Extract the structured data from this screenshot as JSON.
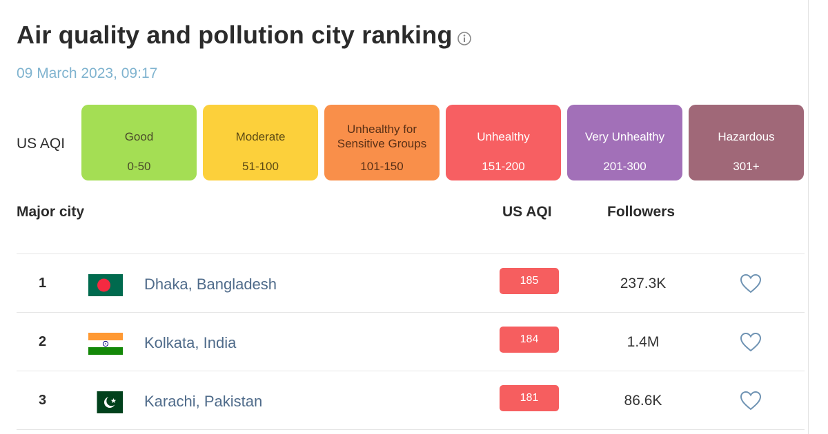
{
  "header": {
    "title": "Air quality and pollution city ranking",
    "timestamp": "09 March 2023, 09:17"
  },
  "legend": {
    "label": "US AQI",
    "levels": [
      {
        "name": "Good",
        "range": "0-50",
        "color": "#a4de54",
        "text_color": "#4a4a2a"
      },
      {
        "name": "Moderate",
        "range": "51-100",
        "color": "#fcd03b",
        "text_color": "#5c4a14"
      },
      {
        "name": "Unhealthy for Sensitive Groups",
        "range": "101-150",
        "color": "#f98f4a",
        "text_color": "#5a3016"
      },
      {
        "name": "Unhealthy",
        "range": "151-200",
        "color": "#f75f62",
        "text_color": "#ffffff"
      },
      {
        "name": "Very Unhealthy",
        "range": "201-300",
        "color": "#a270b8",
        "text_color": "#ffffff"
      },
      {
        "name": "Hazardous",
        "range": "301+",
        "color": "#a06878",
        "text_color": "#ffffff"
      }
    ]
  },
  "table": {
    "headers": {
      "city": "Major city",
      "aqi": "US AQI",
      "followers": "Followers"
    },
    "rows": [
      {
        "rank": "1",
        "city": "Dhaka, Bangladesh",
        "flag": "bangladesh-flag",
        "aqi": "185",
        "followers": "237.3K"
      },
      {
        "rank": "2",
        "city": "Kolkata, India",
        "flag": "india-flag",
        "aqi": "184",
        "followers": "1.4M"
      },
      {
        "rank": "3",
        "city": "Karachi, Pakistan",
        "flag": "pakistan-flag",
        "aqi": "181",
        "followers": "86.6K"
      }
    ]
  },
  "colors": {
    "aqi_badge": "#f65e5f",
    "city_link": "#4f6b8a",
    "timestamp": "#7fb3cf",
    "heart_outline": "#6f93b3"
  }
}
